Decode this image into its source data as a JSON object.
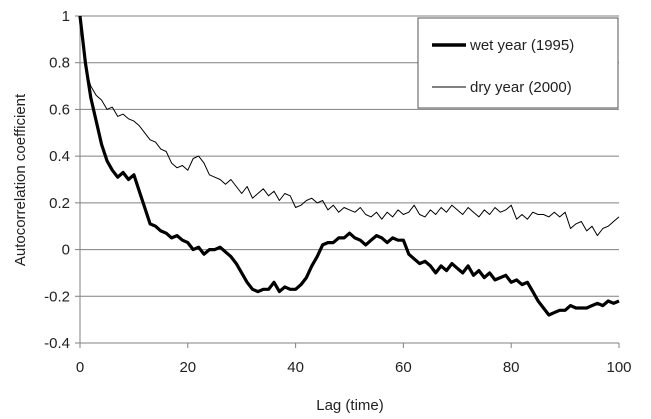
{
  "chart_data": {
    "type": "line",
    "title": "",
    "xlabel": "Lag (time)",
    "ylabel": "Autocorrelation coefficient",
    "xlim": [
      0,
      100
    ],
    "ylim": [
      -0.4,
      1
    ],
    "x_ticks": [
      0,
      20,
      40,
      60,
      80,
      100
    ],
    "y_ticks": [
      -0.4,
      -0.2,
      0,
      0.2,
      0.4,
      0.6,
      0.8,
      1
    ],
    "x_tick_labels": [
      "0",
      "20",
      "40",
      "60",
      "80",
      "100"
    ],
    "y_tick_labels": [
      "-0.4",
      "-0.2",
      "0",
      "0.2",
      "0.4",
      "0.6",
      "0.8",
      "1"
    ],
    "grid": "horizontal",
    "legend_position": "top-right",
    "series": [
      {
        "name": "wet year (1995)",
        "color": "#000000",
        "style": "thick",
        "x": [
          0,
          1,
          2,
          3,
          4,
          5,
          6,
          7,
          8,
          9,
          10,
          11,
          12,
          13,
          14,
          15,
          16,
          17,
          18,
          19,
          20,
          21,
          22,
          23,
          24,
          25,
          26,
          27,
          28,
          29,
          30,
          31,
          32,
          33,
          34,
          35,
          36,
          37,
          38,
          39,
          40,
          41,
          42,
          43,
          44,
          45,
          46,
          47,
          48,
          49,
          50,
          51,
          52,
          53,
          54,
          55,
          56,
          57,
          58,
          59,
          60,
          61,
          62,
          63,
          64,
          65,
          66,
          67,
          68,
          69,
          70,
          71,
          72,
          73,
          74,
          75,
          76,
          77,
          78,
          79,
          80,
          81,
          82,
          83,
          84,
          85,
          86,
          87,
          88,
          89,
          90,
          91,
          92,
          93,
          94,
          95,
          96,
          97,
          98,
          99,
          100
        ],
        "y": [
          1.0,
          0.8,
          0.65,
          0.55,
          0.45,
          0.38,
          0.34,
          0.31,
          0.33,
          0.3,
          0.32,
          0.25,
          0.18,
          0.11,
          0.1,
          0.08,
          0.07,
          0.05,
          0.06,
          0.04,
          0.03,
          0.0,
          0.01,
          -0.02,
          0.0,
          0.0,
          0.01,
          -0.01,
          -0.03,
          -0.06,
          -0.1,
          -0.14,
          -0.17,
          -0.18,
          -0.17,
          -0.17,
          -0.14,
          -0.18,
          -0.16,
          -0.17,
          -0.17,
          -0.15,
          -0.12,
          -0.07,
          -0.03,
          0.02,
          0.03,
          0.03,
          0.05,
          0.05,
          0.07,
          0.05,
          0.04,
          0.02,
          0.04,
          0.06,
          0.05,
          0.03,
          0.05,
          0.04,
          0.04,
          -0.02,
          -0.04,
          -0.06,
          -0.05,
          -0.07,
          -0.1,
          -0.07,
          -0.09,
          -0.06,
          -0.08,
          -0.1,
          -0.07,
          -0.11,
          -0.09,
          -0.12,
          -0.1,
          -0.13,
          -0.12,
          -0.11,
          -0.14,
          -0.13,
          -0.15,
          -0.14,
          -0.18,
          -0.22,
          -0.25,
          -0.28,
          -0.27,
          -0.26,
          -0.26,
          -0.24,
          -0.25,
          -0.25,
          -0.25,
          -0.24,
          -0.23,
          -0.24,
          -0.22,
          -0.23,
          -0.22
        ]
      },
      {
        "name": "dry year (2000)",
        "color": "#000000",
        "style": "thin",
        "x": [
          0,
          1,
          2,
          3,
          4,
          5,
          6,
          7,
          8,
          9,
          10,
          11,
          12,
          13,
          14,
          15,
          16,
          17,
          18,
          19,
          20,
          21,
          22,
          23,
          24,
          25,
          26,
          27,
          28,
          29,
          30,
          31,
          32,
          33,
          34,
          35,
          36,
          37,
          38,
          39,
          40,
          41,
          42,
          43,
          44,
          45,
          46,
          47,
          48,
          49,
          50,
          51,
          52,
          53,
          54,
          55,
          56,
          57,
          58,
          59,
          60,
          61,
          62,
          63,
          64,
          65,
          66,
          67,
          68,
          69,
          70,
          71,
          72,
          73,
          74,
          75,
          76,
          77,
          78,
          79,
          80,
          81,
          82,
          83,
          84,
          85,
          86,
          87,
          88,
          89,
          90,
          91,
          92,
          93,
          94,
          95,
          96,
          97,
          98,
          99,
          100
        ],
        "y": [
          1.0,
          0.78,
          0.7,
          0.66,
          0.64,
          0.6,
          0.61,
          0.57,
          0.58,
          0.56,
          0.55,
          0.53,
          0.5,
          0.47,
          0.46,
          0.43,
          0.42,
          0.37,
          0.35,
          0.36,
          0.34,
          0.39,
          0.4,
          0.37,
          0.32,
          0.31,
          0.3,
          0.28,
          0.3,
          0.27,
          0.24,
          0.27,
          0.22,
          0.24,
          0.26,
          0.23,
          0.25,
          0.21,
          0.24,
          0.23,
          0.18,
          0.19,
          0.21,
          0.22,
          0.2,
          0.21,
          0.17,
          0.19,
          0.16,
          0.18,
          0.17,
          0.16,
          0.18,
          0.15,
          0.14,
          0.16,
          0.13,
          0.16,
          0.14,
          0.17,
          0.15,
          0.16,
          0.19,
          0.15,
          0.14,
          0.17,
          0.15,
          0.18,
          0.16,
          0.19,
          0.17,
          0.15,
          0.18,
          0.16,
          0.14,
          0.17,
          0.15,
          0.18,
          0.16,
          0.17,
          0.19,
          0.13,
          0.15,
          0.13,
          0.16,
          0.15,
          0.15,
          0.14,
          0.16,
          0.14,
          0.16,
          0.09,
          0.11,
          0.12,
          0.08,
          0.1,
          0.06,
          0.09,
          0.1,
          0.12,
          0.14
        ]
      }
    ]
  }
}
